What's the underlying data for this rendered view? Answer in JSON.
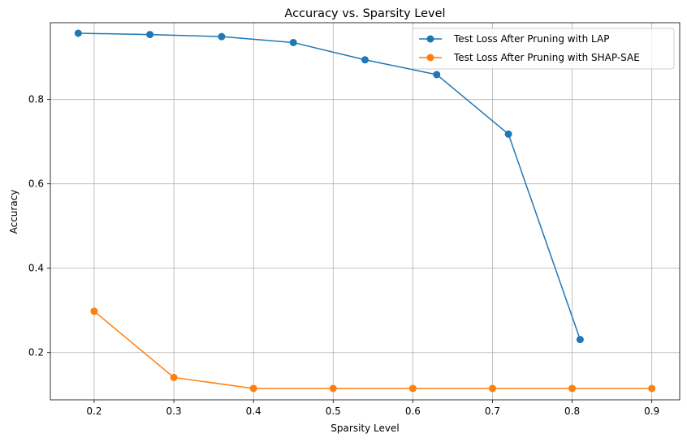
{
  "chart_data": {
    "type": "line",
    "title": "Accuracy vs. Sparsity Level",
    "xlabel": "Sparsity Level",
    "ylabel": "Accuracy",
    "xlim": [
      0.145,
      0.935
    ],
    "ylim": [
      0.088,
      0.982
    ],
    "xticks": [
      0.2,
      0.3,
      0.4,
      0.5,
      0.6,
      0.7,
      0.8,
      0.9
    ],
    "xtick_labels": [
      "0.2",
      "0.3",
      "0.4",
      "0.5",
      "0.6",
      "0.7",
      "0.8",
      "0.9"
    ],
    "yticks": [
      0.2,
      0.4,
      0.6,
      0.8
    ],
    "ytick_labels": [
      "0.2",
      "0.4",
      "0.6",
      "0.8"
    ],
    "grid": true,
    "legend_position": "upper right",
    "series": [
      {
        "name": "Test Loss After Pruning with LAP",
        "color": "#1f77b4",
        "marker": "circle",
        "x": [
          0.18,
          0.27,
          0.36,
          0.45,
          0.54,
          0.63,
          0.72,
          0.81
        ],
        "y": [
          0.957,
          0.954,
          0.949,
          0.935,
          0.894,
          0.859,
          0.718,
          0.231
        ]
      },
      {
        "name": "Test Loss After Pruning with SHAP-SAE",
        "color": "#ff7f0e",
        "marker": "circle",
        "x": [
          0.2,
          0.3,
          0.4,
          0.5,
          0.6,
          0.7,
          0.8,
          0.9
        ],
        "y": [
          0.298,
          0.141,
          0.115,
          0.115,
          0.115,
          0.115,
          0.115,
          0.115
        ]
      }
    ]
  }
}
